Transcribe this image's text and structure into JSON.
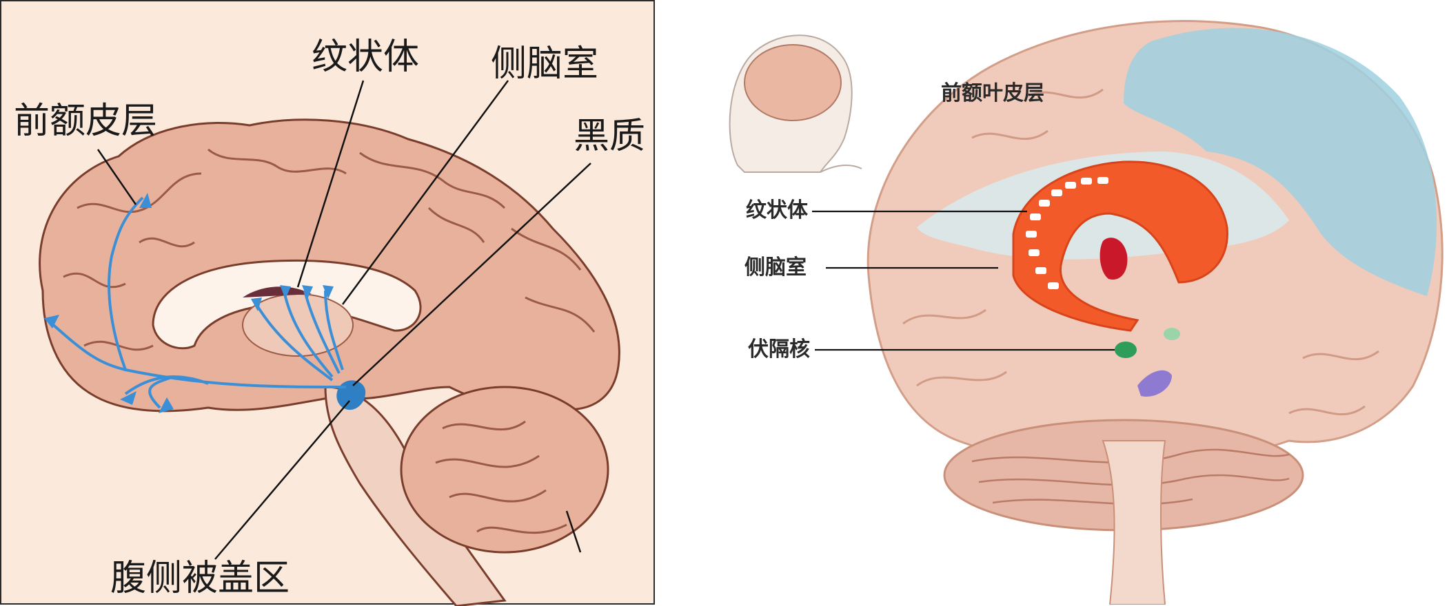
{
  "left": {
    "labels": {
      "prefrontal_cortex": "前额皮层",
      "striatum": "纹状体",
      "lateral_ventricle": "侧脑室",
      "substantia_nigra": "黑质",
      "vta": "腹侧被盖区"
    }
  },
  "right": {
    "labels": {
      "prefrontal_cortex": "前额叶皮层",
      "striatum": "纹状体",
      "lateral_ventricle": "侧脑室",
      "nucleus_accumbens": "伏隔核"
    }
  },
  "colors": {
    "left_background": "#fbe9dc",
    "brain_tissue": "#e8b19c",
    "pathway": "#3a8fd6",
    "striatum_orange": "#f25a2a",
    "prefrontal_blue": "#8ec8dc",
    "accumbens_green": "#2e9d5a"
  }
}
